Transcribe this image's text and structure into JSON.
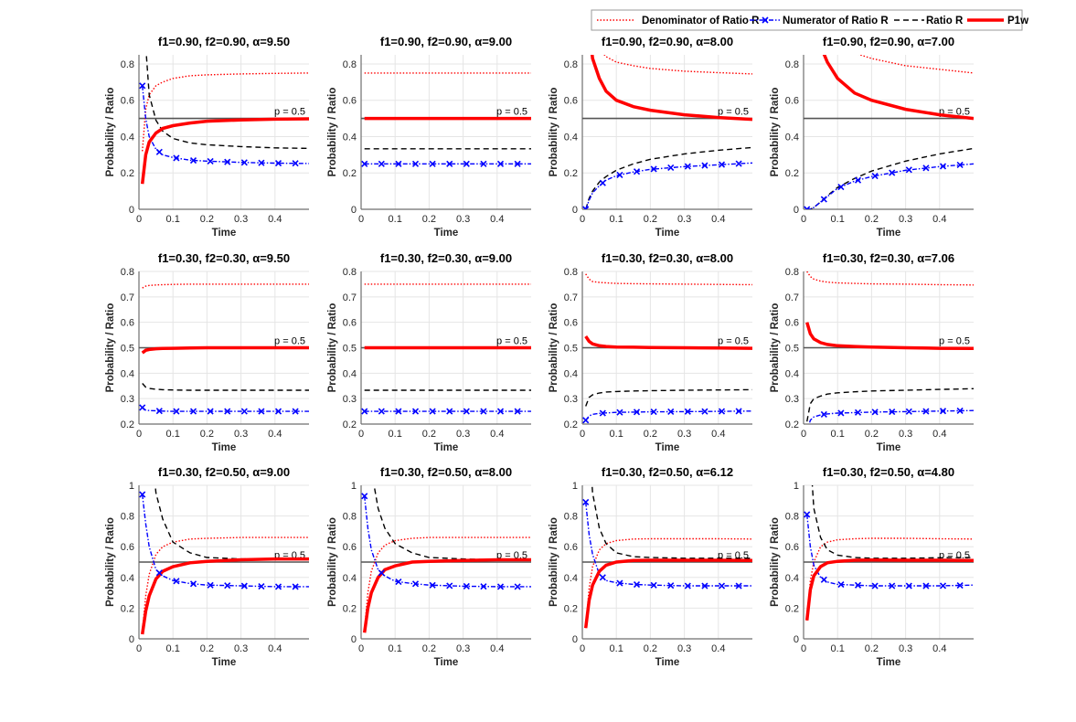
{
  "chart_data": {
    "type": "line",
    "layout": "3x4 grid of subplots",
    "legend": {
      "placement": "top-right",
      "entries": [
        {
          "key": "den",
          "label": "Denominator of Ratio R",
          "color": "#ff0000",
          "style": "dotted"
        },
        {
          "key": "num",
          "label": "Numerator of Ratio R",
          "color": "#0000ff",
          "style": "dash-dot with x markers"
        },
        {
          "key": "ratio",
          "label": "Ratio R",
          "color": "#000000",
          "style": "dashed"
        },
        {
          "key": "p1w",
          "label": "P1w",
          "color": "#ff0000",
          "style": "thick solid"
        }
      ]
    },
    "reference_line": {
      "y": 0.5,
      "label": "p = 0.5",
      "color": "#555555"
    },
    "xlabel": "Time",
    "ylabel": "Probability / Ratio",
    "xlim": [
      0,
      0.5
    ],
    "xticks": [
      0,
      0.1,
      0.2,
      0.3,
      0.4
    ],
    "grid": true,
    "x": [
      0.01,
      0.02,
      0.03,
      0.05,
      0.07,
      0.1,
      0.15,
      0.2,
      0.3,
      0.4,
      0.5
    ],
    "rows": [
      {
        "ylim": [
          0,
          0.85
        ],
        "yticks": [
          0,
          0.2,
          0.4,
          0.6,
          0.8
        ]
      },
      {
        "ylim": [
          0.2,
          0.8
        ],
        "yticks": [
          0.2,
          0.3,
          0.4,
          0.5,
          0.6,
          0.7,
          0.8
        ]
      },
      {
        "ylim": [
          0,
          1
        ],
        "yticks": [
          0,
          0.2,
          0.4,
          0.6,
          0.8,
          1
        ]
      }
    ],
    "panels": [
      {
        "title": "f1=0.90, f2=0.90, α=9.50",
        "row": 0,
        "den": [
          0.32,
          0.55,
          0.63,
          0.68,
          0.7,
          0.72,
          0.735,
          0.74,
          0.745,
          0.748,
          0.75
        ],
        "num": [
          0.68,
          0.5,
          0.4,
          0.33,
          0.3,
          0.285,
          0.27,
          0.265,
          0.258,
          0.254,
          0.252
        ],
        "ratio": [
          2.1,
          0.9,
          0.63,
          0.49,
          0.43,
          0.39,
          0.365,
          0.355,
          0.345,
          0.338,
          0.335
        ],
        "p1w": [
          0.14,
          0.3,
          0.37,
          0.42,
          0.445,
          0.46,
          0.475,
          0.485,
          0.492,
          0.496,
          0.498
        ]
      },
      {
        "title": "f1=0.90, f2=0.90, α=9.00",
        "row": 0,
        "den": [
          0.75,
          0.75,
          0.75,
          0.75,
          0.75,
          0.75,
          0.75,
          0.75,
          0.75,
          0.75,
          0.75
        ],
        "num": [
          0.25,
          0.25,
          0.25,
          0.25,
          0.25,
          0.25,
          0.25,
          0.25,
          0.25,
          0.25,
          0.25
        ],
        "ratio": [
          0.333,
          0.333,
          0.333,
          0.333,
          0.333,
          0.333,
          0.333,
          0.333,
          0.333,
          0.333,
          0.333
        ],
        "p1w": [
          0.5,
          0.5,
          0.5,
          0.5,
          0.5,
          0.5,
          0.5,
          0.5,
          0.5,
          0.5,
          0.5
        ]
      },
      {
        "title": "f1=0.90, f2=0.90, α=8.00",
        "row": 0,
        "den": [
          1.5,
          1.1,
          0.95,
          0.88,
          0.84,
          0.81,
          0.79,
          0.775,
          0.76,
          0.752,
          0.745
        ],
        "num": [
          0,
          0.05,
          0.09,
          0.13,
          0.16,
          0.185,
          0.205,
          0.22,
          0.235,
          0.245,
          0.255
        ],
        "ratio": [
          0,
          0.06,
          0.1,
          0.15,
          0.18,
          0.215,
          0.25,
          0.275,
          0.305,
          0.325,
          0.34
        ],
        "p1w": [
          1.4,
          1.0,
          0.83,
          0.72,
          0.65,
          0.6,
          0.565,
          0.545,
          0.52,
          0.505,
          0.495
        ]
      },
      {
        "title": "f1=0.90, f2=0.90, α=7.00",
        "row": 0,
        "den": [
          3,
          2,
          1.6,
          1.2,
          1.05,
          0.95,
          0.86,
          0.83,
          0.79,
          0.77,
          0.75
        ],
        "num": [
          0,
          0,
          0.01,
          0.04,
          0.07,
          0.115,
          0.155,
          0.18,
          0.215,
          0.235,
          0.25
        ],
        "ratio": [
          0,
          0,
          0.01,
          0.04,
          0.075,
          0.12,
          0.17,
          0.21,
          0.265,
          0.305,
          0.335
        ],
        "p1w": [
          2,
          1.4,
          1.15,
          0.9,
          0.81,
          0.72,
          0.64,
          0.6,
          0.55,
          0.52,
          0.5
        ]
      },
      {
        "title": "f1=0.30, f2=0.30, α=9.50",
        "row": 1,
        "den": [
          0.735,
          0.742,
          0.745,
          0.747,
          0.748,
          0.749,
          0.75,
          0.75,
          0.75,
          0.75,
          0.75
        ],
        "num": [
          0.265,
          0.255,
          0.253,
          0.252,
          0.251,
          0.25,
          0.25,
          0.25,
          0.25,
          0.25,
          0.25
        ],
        "ratio": [
          0.36,
          0.345,
          0.34,
          0.337,
          0.335,
          0.334,
          0.333,
          0.333,
          0.333,
          0.333,
          0.333
        ],
        "p1w": [
          0.48,
          0.49,
          0.493,
          0.496,
          0.497,
          0.498,
          0.499,
          0.5,
          0.5,
          0.5,
          0.5
        ]
      },
      {
        "title": "f1=0.30, f2=0.30, α=9.00",
        "row": 1,
        "den": [
          0.75,
          0.75,
          0.75,
          0.75,
          0.75,
          0.75,
          0.75,
          0.75,
          0.75,
          0.75,
          0.75
        ],
        "num": [
          0.25,
          0.25,
          0.25,
          0.25,
          0.25,
          0.25,
          0.25,
          0.25,
          0.25,
          0.25,
          0.25
        ],
        "ratio": [
          0.333,
          0.333,
          0.333,
          0.333,
          0.333,
          0.333,
          0.333,
          0.333,
          0.333,
          0.333,
          0.333
        ],
        "p1w": [
          0.5,
          0.5,
          0.5,
          0.5,
          0.5,
          0.5,
          0.5,
          0.5,
          0.5,
          0.5,
          0.5
        ]
      },
      {
        "title": "f1=0.30, f2=0.30, α=8.00",
        "row": 1,
        "den": [
          0.79,
          0.77,
          0.76,
          0.757,
          0.755,
          0.753,
          0.752,
          0.751,
          0.75,
          0.749,
          0.748
        ],
        "num": [
          0.215,
          0.232,
          0.238,
          0.242,
          0.244,
          0.246,
          0.247,
          0.248,
          0.249,
          0.25,
          0.251
        ],
        "ratio": [
          0.27,
          0.305,
          0.315,
          0.322,
          0.326,
          0.328,
          0.33,
          0.331,
          0.333,
          0.334,
          0.335
        ],
        "p1w": [
          0.545,
          0.525,
          0.515,
          0.508,
          0.505,
          0.503,
          0.502,
          0.501,
          0.5,
          0.499,
          0.498
        ]
      },
      {
        "title": "f1=0.30, f2=0.30, α=7.06",
        "row": 1,
        "den": [
          0.8,
          0.78,
          0.77,
          0.762,
          0.758,
          0.755,
          0.753,
          0.751,
          0.75,
          0.748,
          0.747
        ],
        "num": [
          0.17,
          0.215,
          0.228,
          0.236,
          0.24,
          0.243,
          0.245,
          0.247,
          0.249,
          0.251,
          0.253
        ],
        "ratio": [
          0.21,
          0.28,
          0.3,
          0.31,
          0.318,
          0.323,
          0.327,
          0.33,
          0.333,
          0.336,
          0.339
        ],
        "p1w": [
          0.6,
          0.555,
          0.535,
          0.52,
          0.513,
          0.508,
          0.505,
          0.503,
          0.5,
          0.498,
          0.497
        ]
      },
      {
        "title": "f1=0.30, f2=0.50, α=9.00",
        "row": 2,
        "den": [
          0.05,
          0.28,
          0.42,
          0.55,
          0.6,
          0.63,
          0.65,
          0.655,
          0.66,
          0.66,
          0.66
        ],
        "num": [
          0.94,
          0.75,
          0.6,
          0.45,
          0.41,
          0.38,
          0.36,
          0.35,
          0.345,
          0.34,
          0.34
        ],
        "ratio": [
          3,
          2,
          1.4,
          0.95,
          0.78,
          0.63,
          0.56,
          0.53,
          0.52,
          0.52,
          0.52
        ],
        "p1w": [
          0.03,
          0.18,
          0.28,
          0.39,
          0.44,
          0.47,
          0.495,
          0.505,
          0.515,
          0.52,
          0.52
        ]
      },
      {
        "title": "f1=0.30, f2=0.50, α=8.00",
        "row": 2,
        "den": [
          0.06,
          0.3,
          0.44,
          0.56,
          0.61,
          0.64,
          0.655,
          0.66,
          0.66,
          0.66,
          0.66
        ],
        "num": [
          0.93,
          0.72,
          0.58,
          0.45,
          0.41,
          0.375,
          0.36,
          0.35,
          0.343,
          0.34,
          0.34
        ],
        "ratio": [
          3,
          1.5,
          1.1,
          0.85,
          0.72,
          0.62,
          0.56,
          0.53,
          0.52,
          0.515,
          0.515
        ],
        "p1w": [
          0.04,
          0.2,
          0.3,
          0.4,
          0.45,
          0.475,
          0.5,
          0.505,
          0.51,
          0.515,
          0.515
        ]
      },
      {
        "title": "f1=0.30, f2=0.50, α=6.12",
        "row": 2,
        "den": [
          0.07,
          0.33,
          0.47,
          0.58,
          0.62,
          0.64,
          0.65,
          0.652,
          0.652,
          0.652,
          0.65
        ],
        "num": [
          0.89,
          0.68,
          0.55,
          0.42,
          0.38,
          0.365,
          0.355,
          0.35,
          0.345,
          0.345,
          0.345
        ],
        "ratio": [
          2,
          1.3,
          0.95,
          0.72,
          0.62,
          0.56,
          0.535,
          0.53,
          0.525,
          0.525,
          0.525
        ],
        "p1w": [
          0.07,
          0.25,
          0.35,
          0.44,
          0.48,
          0.5,
          0.51,
          0.512,
          0.512,
          0.512,
          0.51
        ]
      },
      {
        "title": "f1=0.30, f2=0.50, α=4.80",
        "row": 2,
        "den": [
          0.12,
          0.38,
          0.5,
          0.6,
          0.63,
          0.645,
          0.652,
          0.655,
          0.655,
          0.652,
          0.65
        ],
        "num": [
          0.81,
          0.6,
          0.48,
          0.4,
          0.37,
          0.355,
          0.35,
          0.345,
          0.345,
          0.345,
          0.35
        ],
        "ratio": [
          1.8,
          1.2,
          0.85,
          0.66,
          0.58,
          0.545,
          0.53,
          0.525,
          0.525,
          0.528,
          0.53
        ],
        "p1w": [
          0.12,
          0.32,
          0.41,
          0.47,
          0.495,
          0.505,
          0.512,
          0.513,
          0.512,
          0.512,
          0.51
        ]
      }
    ]
  }
}
